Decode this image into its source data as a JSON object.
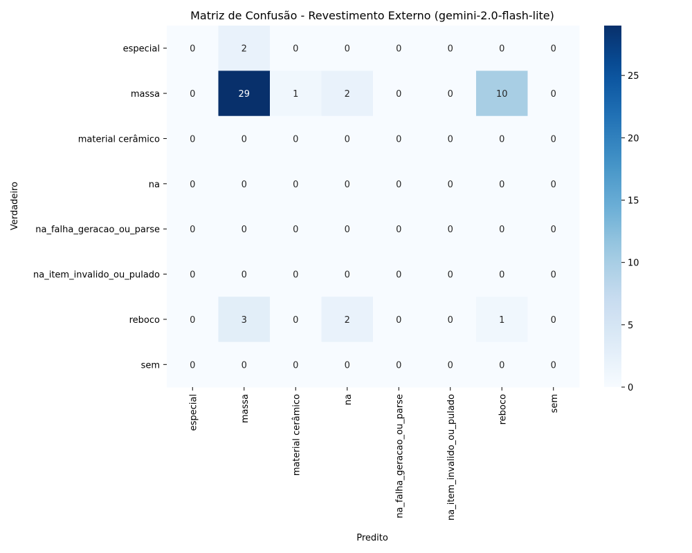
{
  "chart_data": {
    "type": "heatmap",
    "title": "Matriz de Confusão - Revestimento Externo (gemini-2.0-flash-lite)",
    "xlabel": "Predito",
    "ylabel": "Verdadeiro",
    "row_labels": [
      "especial",
      "massa",
      "material cerâmico",
      "na",
      "na_falha_geracao_ou_parse",
      "na_item_invalido_ou_pulado",
      "reboco",
      "sem"
    ],
    "col_labels": [
      "especial",
      "massa",
      "material cerâmico",
      "na",
      "na_falha_geracao_ou_parse",
      "na_item_invalido_ou_pulado",
      "reboco",
      "sem"
    ],
    "values": [
      [
        0,
        2,
        0,
        0,
        0,
        0,
        0,
        0
      ],
      [
        0,
        29,
        1,
        2,
        0,
        0,
        10,
        0
      ],
      [
        0,
        0,
        0,
        0,
        0,
        0,
        0,
        0
      ],
      [
        0,
        0,
        0,
        0,
        0,
        0,
        0,
        0
      ],
      [
        0,
        0,
        0,
        0,
        0,
        0,
        0,
        0
      ],
      [
        0,
        0,
        0,
        0,
        0,
        0,
        0,
        0
      ],
      [
        0,
        3,
        0,
        2,
        0,
        0,
        1,
        0
      ],
      [
        0,
        0,
        0,
        0,
        0,
        0,
        0,
        0
      ]
    ],
    "colorbar": {
      "min": 0,
      "max": 29,
      "ticks": [
        0,
        5,
        10,
        15,
        20,
        25
      ]
    },
    "colormap": "Blues",
    "colors": {
      "low": "#f7fbff",
      "high": "#08306b"
    }
  }
}
